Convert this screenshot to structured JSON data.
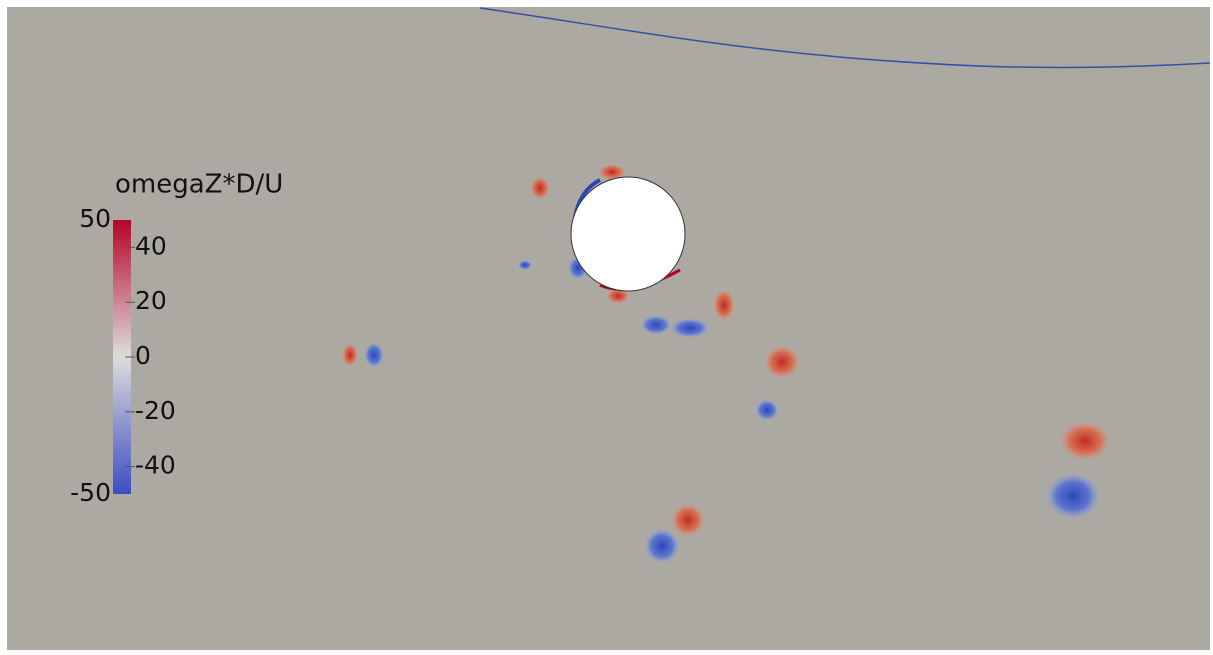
{
  "colorbar": {
    "title": "omegaZ*D/U",
    "range": [
      -50,
      50
    ],
    "ticks": [
      40,
      20,
      0,
      -20,
      -40
    ],
    "colors": [
      "#3b4cc0",
      "#dddddd",
      "#b40426"
    ]
  }
}
